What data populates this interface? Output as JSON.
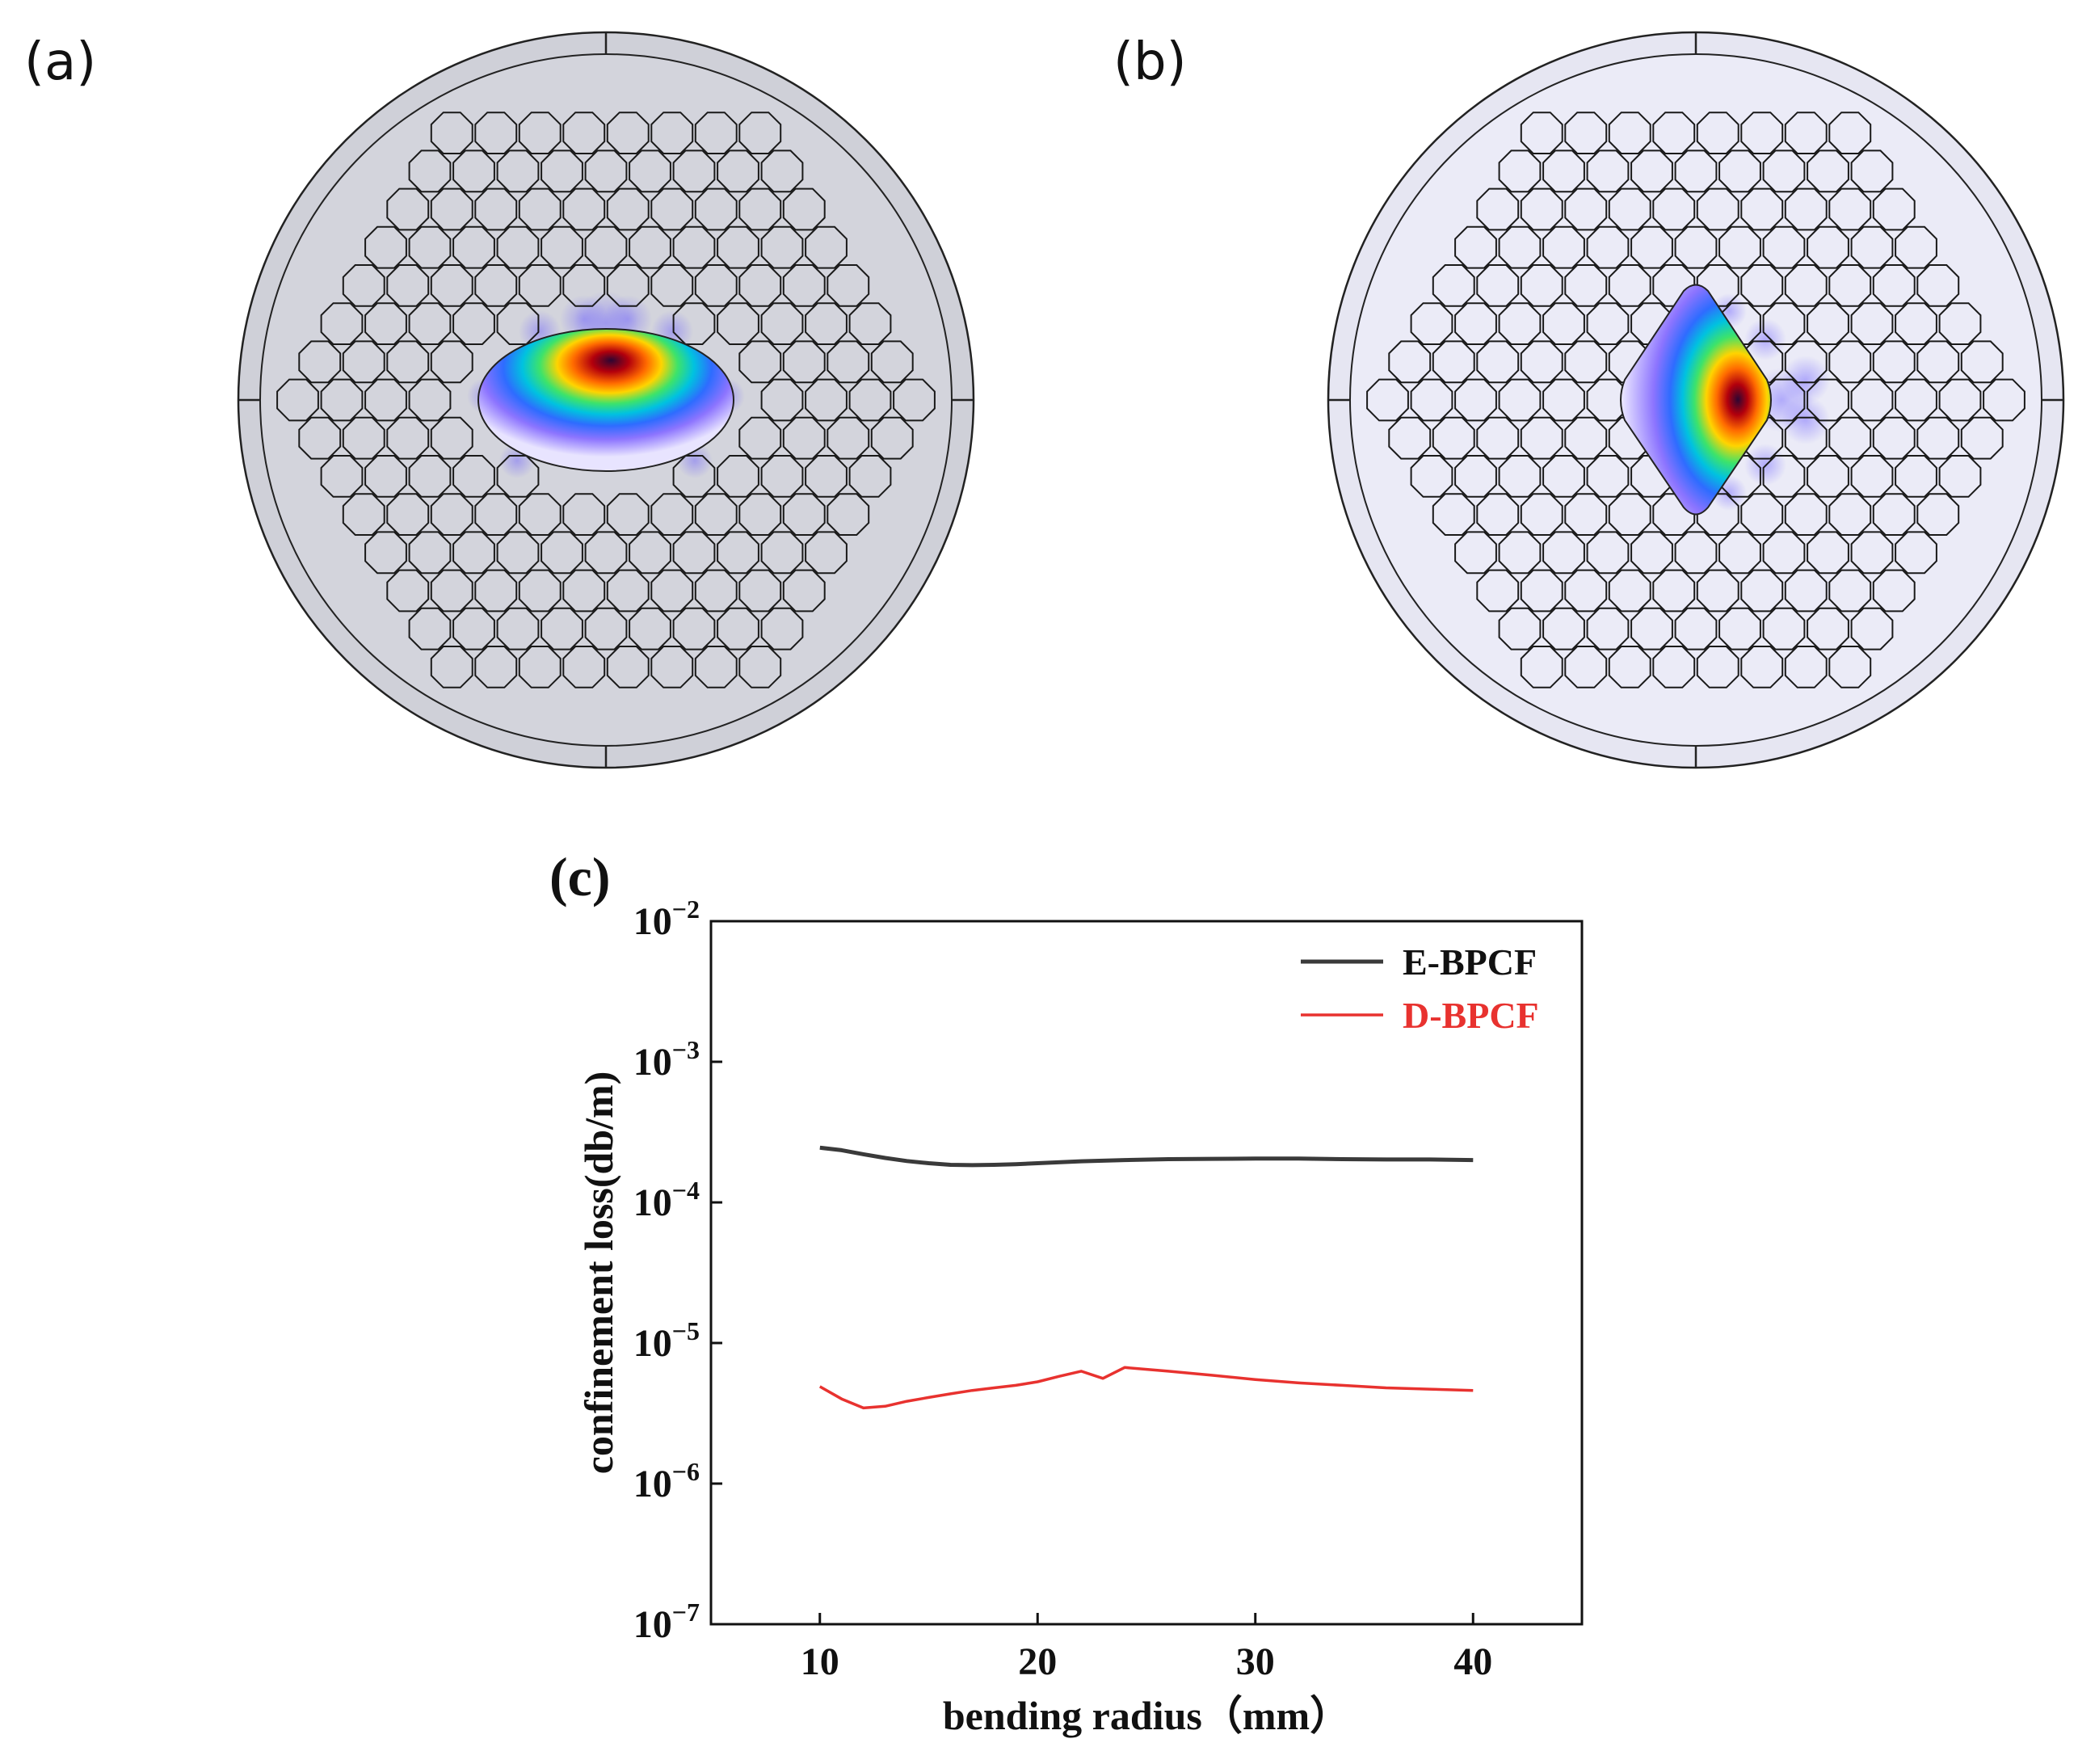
{
  "panels": {
    "a": {
      "label": "(a)",
      "core_shape": "ellipse",
      "cladding_color": "#d3d4dc"
    },
    "b": {
      "label": "(b)",
      "core_shape": "diamond",
      "cladding_color": "#ebebf7"
    },
    "c": {
      "label": "(c)"
    }
  },
  "colormap": [
    "#3b0a3a",
    "#b4000a",
    "#ff6a00",
    "#ffd500",
    "#35e36b",
    "#00c3e0",
    "#2f6bff",
    "#8a72ff",
    "#c9c2ff"
  ],
  "chart_data": {
    "type": "line",
    "title": "(c)",
    "xlabel": "bending radius（mm）",
    "ylabel": "confinement loss(db/m)",
    "xlim": [
      5,
      45
    ],
    "ylim_log10": [
      -7,
      -2
    ],
    "yscale": "log",
    "x_ticks": [
      10,
      20,
      30,
      40
    ],
    "y_ticks": [
      {
        "exp": -2,
        "base": "10",
        "sup": "−2"
      },
      {
        "exp": -3,
        "base": "10",
        "sup": "−3"
      },
      {
        "exp": -4,
        "base": "10",
        "sup": "−4"
      },
      {
        "exp": -5,
        "base": "10",
        "sup": "−5"
      },
      {
        "exp": -6,
        "base": "10",
        "sup": "−6"
      },
      {
        "exp": -7,
        "base": "10",
        "sup": "−7"
      }
    ],
    "legend_position": "top-right",
    "series": [
      {
        "name": "E-BPCF",
        "color": "#3a3a3a",
        "x": [
          10,
          11,
          12,
          13,
          14,
          15,
          16,
          17,
          18,
          19,
          20,
          22,
          24,
          26,
          28,
          30,
          32,
          34,
          36,
          38,
          40
        ],
        "y": [
          0.000245,
          0.000235,
          0.00022,
          0.000207,
          0.000197,
          0.00019,
          0.000185,
          0.000184,
          0.000185,
          0.000187,
          0.00019,
          0.000196,
          0.0002,
          0.000203,
          0.000204,
          0.000205,
          0.000205,
          0.000203,
          0.000202,
          0.000202,
          0.0002
        ]
      },
      {
        "name": "D-BPCF",
        "color": "#e8322f",
        "x": [
          10,
          11,
          12,
          13,
          14,
          15,
          16,
          17,
          18,
          19,
          20,
          21,
          22,
          23,
          24,
          26,
          28,
          30,
          32,
          34,
          36,
          38,
          40
        ],
        "y": [
          4.9e-06,
          4e-06,
          3.45e-06,
          3.55e-06,
          3.85e-06,
          4.1e-06,
          4.35e-06,
          4.6e-06,
          4.8e-06,
          5e-06,
          5.3e-06,
          5.8e-06,
          6.3e-06,
          5.6e-06,
          6.7e-06,
          6.3e-06,
          5.9e-06,
          5.5e-06,
          5.2e-06,
          5e-06,
          4.8e-06,
          4.7e-06,
          4.6e-06
        ]
      }
    ]
  }
}
